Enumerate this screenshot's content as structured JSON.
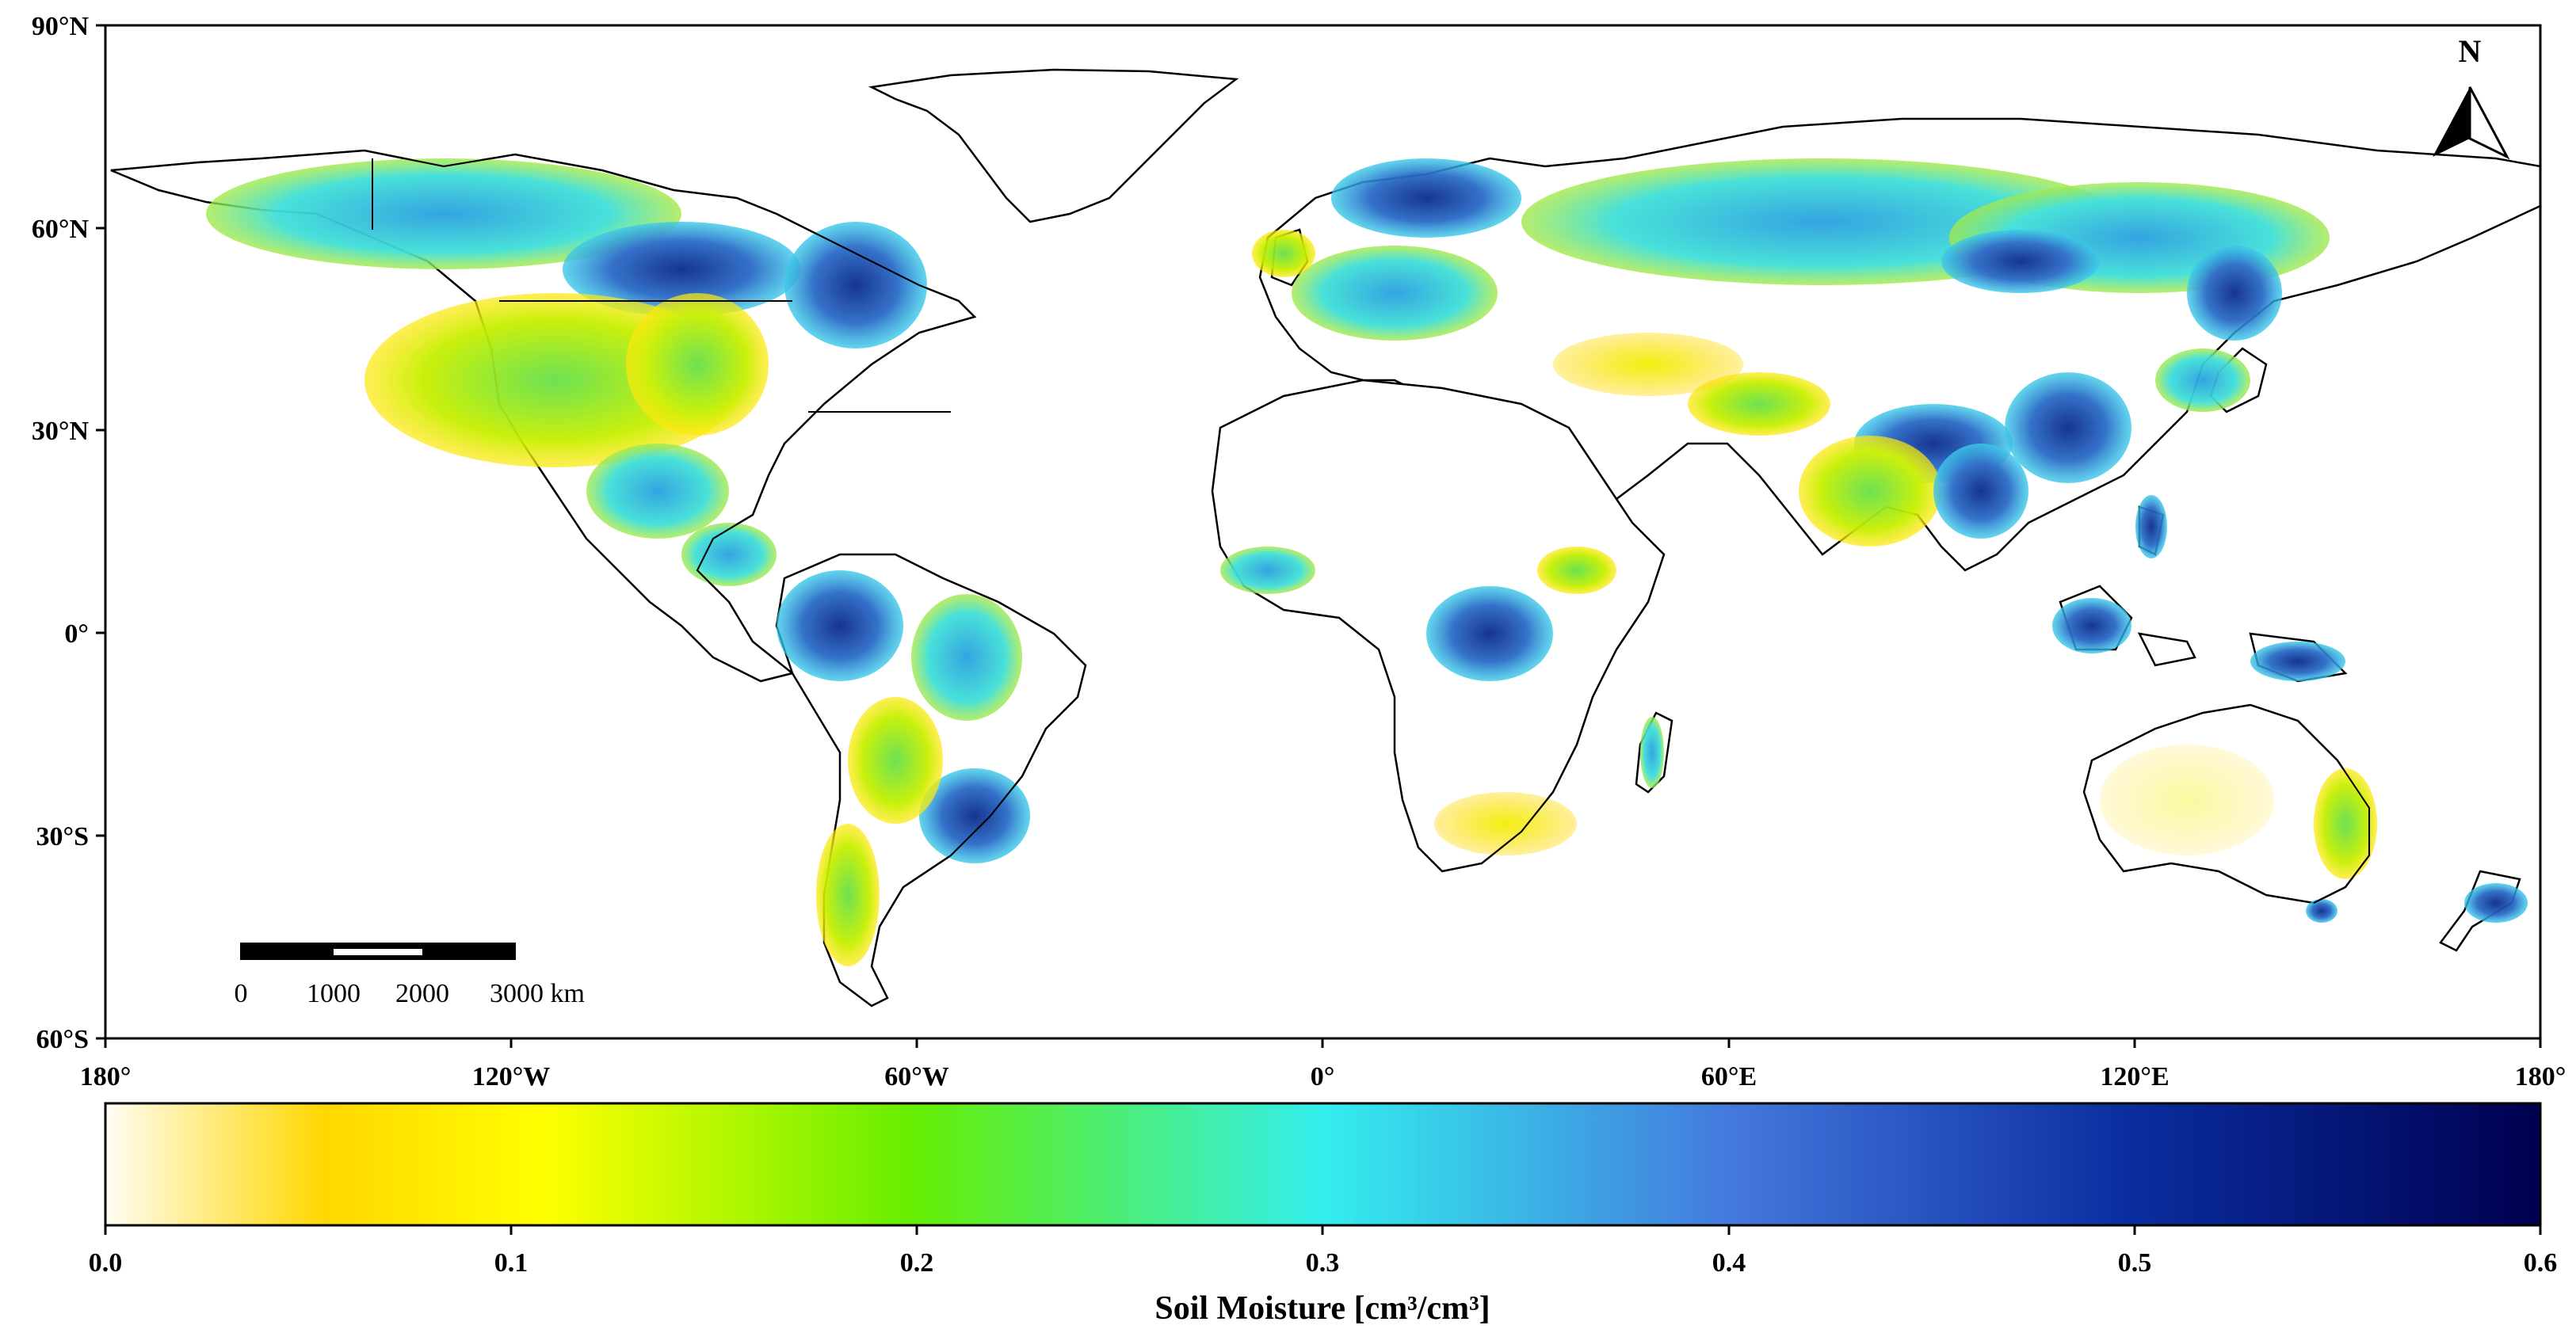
{
  "map": {
    "lat_labels": [
      "90°N",
      "60°N",
      "30°N",
      "0°",
      "30°S",
      "60°S"
    ],
    "lon_labels": [
      "180°",
      "120°W",
      "60°W",
      "0°",
      "60°E",
      "120°E",
      "180°"
    ],
    "north_arrow": {
      "label": "N",
      "icon": "north-arrow-icon"
    },
    "scale_bar": {
      "labels": [
        "0",
        "1000",
        "2000",
        "3000 km"
      ]
    }
  },
  "colorbar": {
    "title": "Soil Moisture [cm³/cm³]",
    "ticks": [
      "0.0",
      "0.1",
      "0.2",
      "0.3",
      "0.4",
      "0.5",
      "0.6"
    ],
    "range": [
      0.0,
      0.6
    ],
    "colors": {
      "c0": "#fffdf5",
      "c1": "#ffd700",
      "c2": "#ffff00",
      "c3": "#66ee00",
      "c4": "#33eeee",
      "c5": "#4477dd",
      "c6": "#000050"
    }
  }
}
